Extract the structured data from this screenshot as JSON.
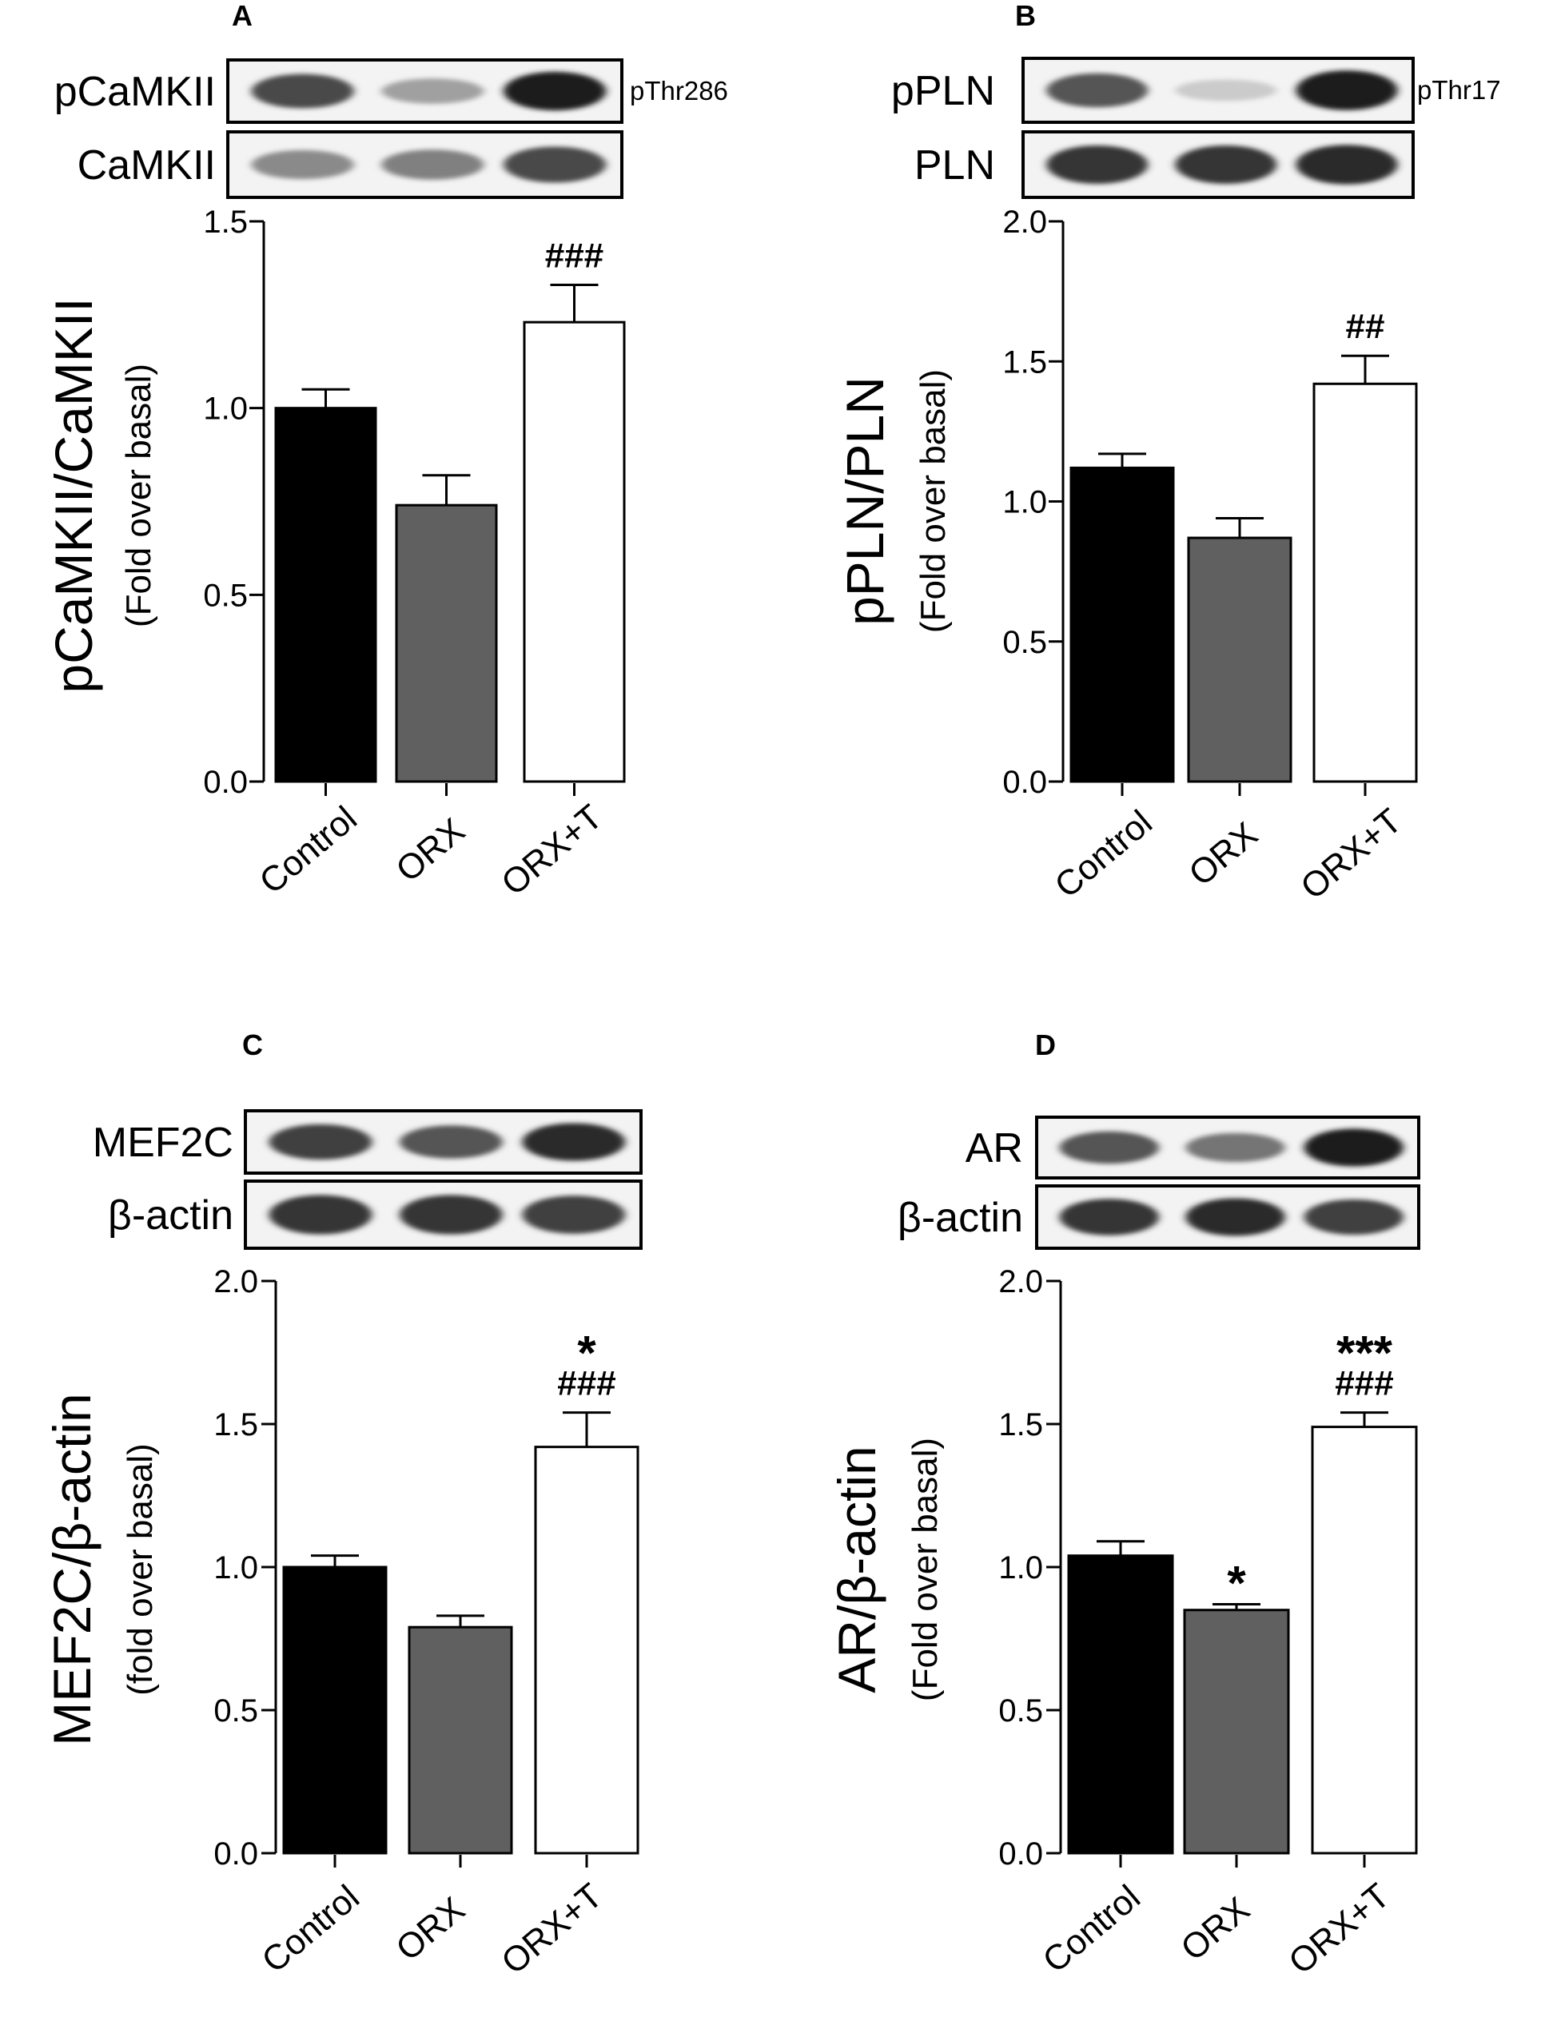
{
  "figure": {
    "panels": [
      {
        "id": "A",
        "label": "A",
        "blots": [
          {
            "label": "pCaMKII",
            "annotation": "pThr286",
            "bands": [
              0.75,
              0.35,
              0.95
            ]
          },
          {
            "label": "CaMKII",
            "annotation": "",
            "bands": [
              0.45,
              0.5,
              0.75
            ]
          }
        ],
        "ylabel_main": "pCaMKII/CaMKII",
        "ylabel_sub": "(Fold over basal)"
      },
      {
        "id": "B",
        "label": "B",
        "blots": [
          {
            "label": "pPLN",
            "annotation": "pThr17",
            "bands": [
              0.7,
              0.15,
              0.95
            ]
          },
          {
            "label": "PLN",
            "annotation": "",
            "bands": [
              0.85,
              0.85,
              0.9
            ]
          }
        ],
        "ylabel_main": "pPLN/PLN",
        "ylabel_sub": "(Fold over basal)"
      },
      {
        "id": "C",
        "label": "C",
        "blots": [
          {
            "label": "MEF2C",
            "annotation": "",
            "bands": [
              0.8,
              0.7,
              0.9
            ]
          },
          {
            "label": "β-actin",
            "annotation": "",
            "bands": [
              0.85,
              0.85,
              0.8
            ]
          }
        ],
        "ylabel_main": "MEF2C/β-actin",
        "ylabel_sub": "(fold over basal)"
      },
      {
        "id": "D",
        "label": "D",
        "blots": [
          {
            "label": "AR",
            "annotation": "",
            "bands": [
              0.7,
              0.55,
              0.95
            ]
          },
          {
            "label": "β-actin",
            "annotation": "",
            "bands": [
              0.85,
              0.9,
              0.8
            ]
          }
        ],
        "ylabel_main": "AR/β-actin",
        "ylabel_sub": "(Fold over basal)"
      }
    ]
  },
  "chart_data": [
    {
      "type": "bar",
      "panel": "A",
      "categories": [
        "Control",
        "ORX",
        "ORX+T"
      ],
      "values": [
        1.0,
        0.74,
        1.23
      ],
      "errors": [
        0.05,
        0.08,
        0.1
      ],
      "significance": [
        "",
        "",
        "###"
      ],
      "bar_colors": [
        "#000000",
        "#606060",
        "#ffffff"
      ],
      "ylim": [
        0,
        1.5
      ],
      "yticks": [
        0.0,
        0.5,
        1.0,
        1.5
      ],
      "ytick_labels": [
        "0.0",
        "0.5",
        "1.0",
        "1.5"
      ],
      "ylabel": "pCaMKII/CaMKII (Fold over basal)"
    },
    {
      "type": "bar",
      "panel": "B",
      "categories": [
        "Control",
        "ORX",
        "ORX+T"
      ],
      "values": [
        1.12,
        0.87,
        1.42
      ],
      "errors": [
        0.05,
        0.07,
        0.1
      ],
      "significance": [
        "",
        "",
        "##"
      ],
      "bar_colors": [
        "#000000",
        "#606060",
        "#ffffff"
      ],
      "ylim": [
        0,
        2.0
      ],
      "yticks": [
        0.0,
        0.5,
        1.0,
        1.5,
        2.0
      ],
      "ytick_labels": [
        "0.0",
        "0.5",
        "1.0",
        "1.5",
        "2.0"
      ],
      "ylabel": "pPLN/PLN (Fold over basal)"
    },
    {
      "type": "bar",
      "panel": "C",
      "categories": [
        "Control",
        "ORX",
        "ORX+T"
      ],
      "values": [
        1.0,
        0.79,
        1.42
      ],
      "errors": [
        0.04,
        0.04,
        0.12
      ],
      "significance": [
        "",
        "",
        "*\n###"
      ],
      "bar_colors": [
        "#000000",
        "#606060",
        "#ffffff"
      ],
      "ylim": [
        0,
        2.0
      ],
      "yticks": [
        0.0,
        0.5,
        1.0,
        1.5,
        2.0
      ],
      "ytick_labels": [
        "0.0",
        "0.5",
        "1.0",
        "1.5",
        "2.0"
      ],
      "ylabel": "MEF2C/β-actin (fold over basal)"
    },
    {
      "type": "bar",
      "panel": "D",
      "categories": [
        "Control",
        "ORX",
        "ORX+T"
      ],
      "values": [
        1.04,
        0.85,
        1.49
      ],
      "errors": [
        0.05,
        0.02,
        0.05
      ],
      "significance": [
        "",
        "*",
        "***\n###"
      ],
      "bar_colors": [
        "#000000",
        "#606060",
        "#ffffff"
      ],
      "ylim": [
        0,
        2.0
      ],
      "yticks": [
        0.0,
        0.5,
        1.0,
        1.5,
        2.0
      ],
      "ytick_labels": [
        "0.0",
        "0.5",
        "1.0",
        "1.5",
        "2.0"
      ],
      "ylabel": "AR/β-actin (Fold over basal)"
    }
  ]
}
